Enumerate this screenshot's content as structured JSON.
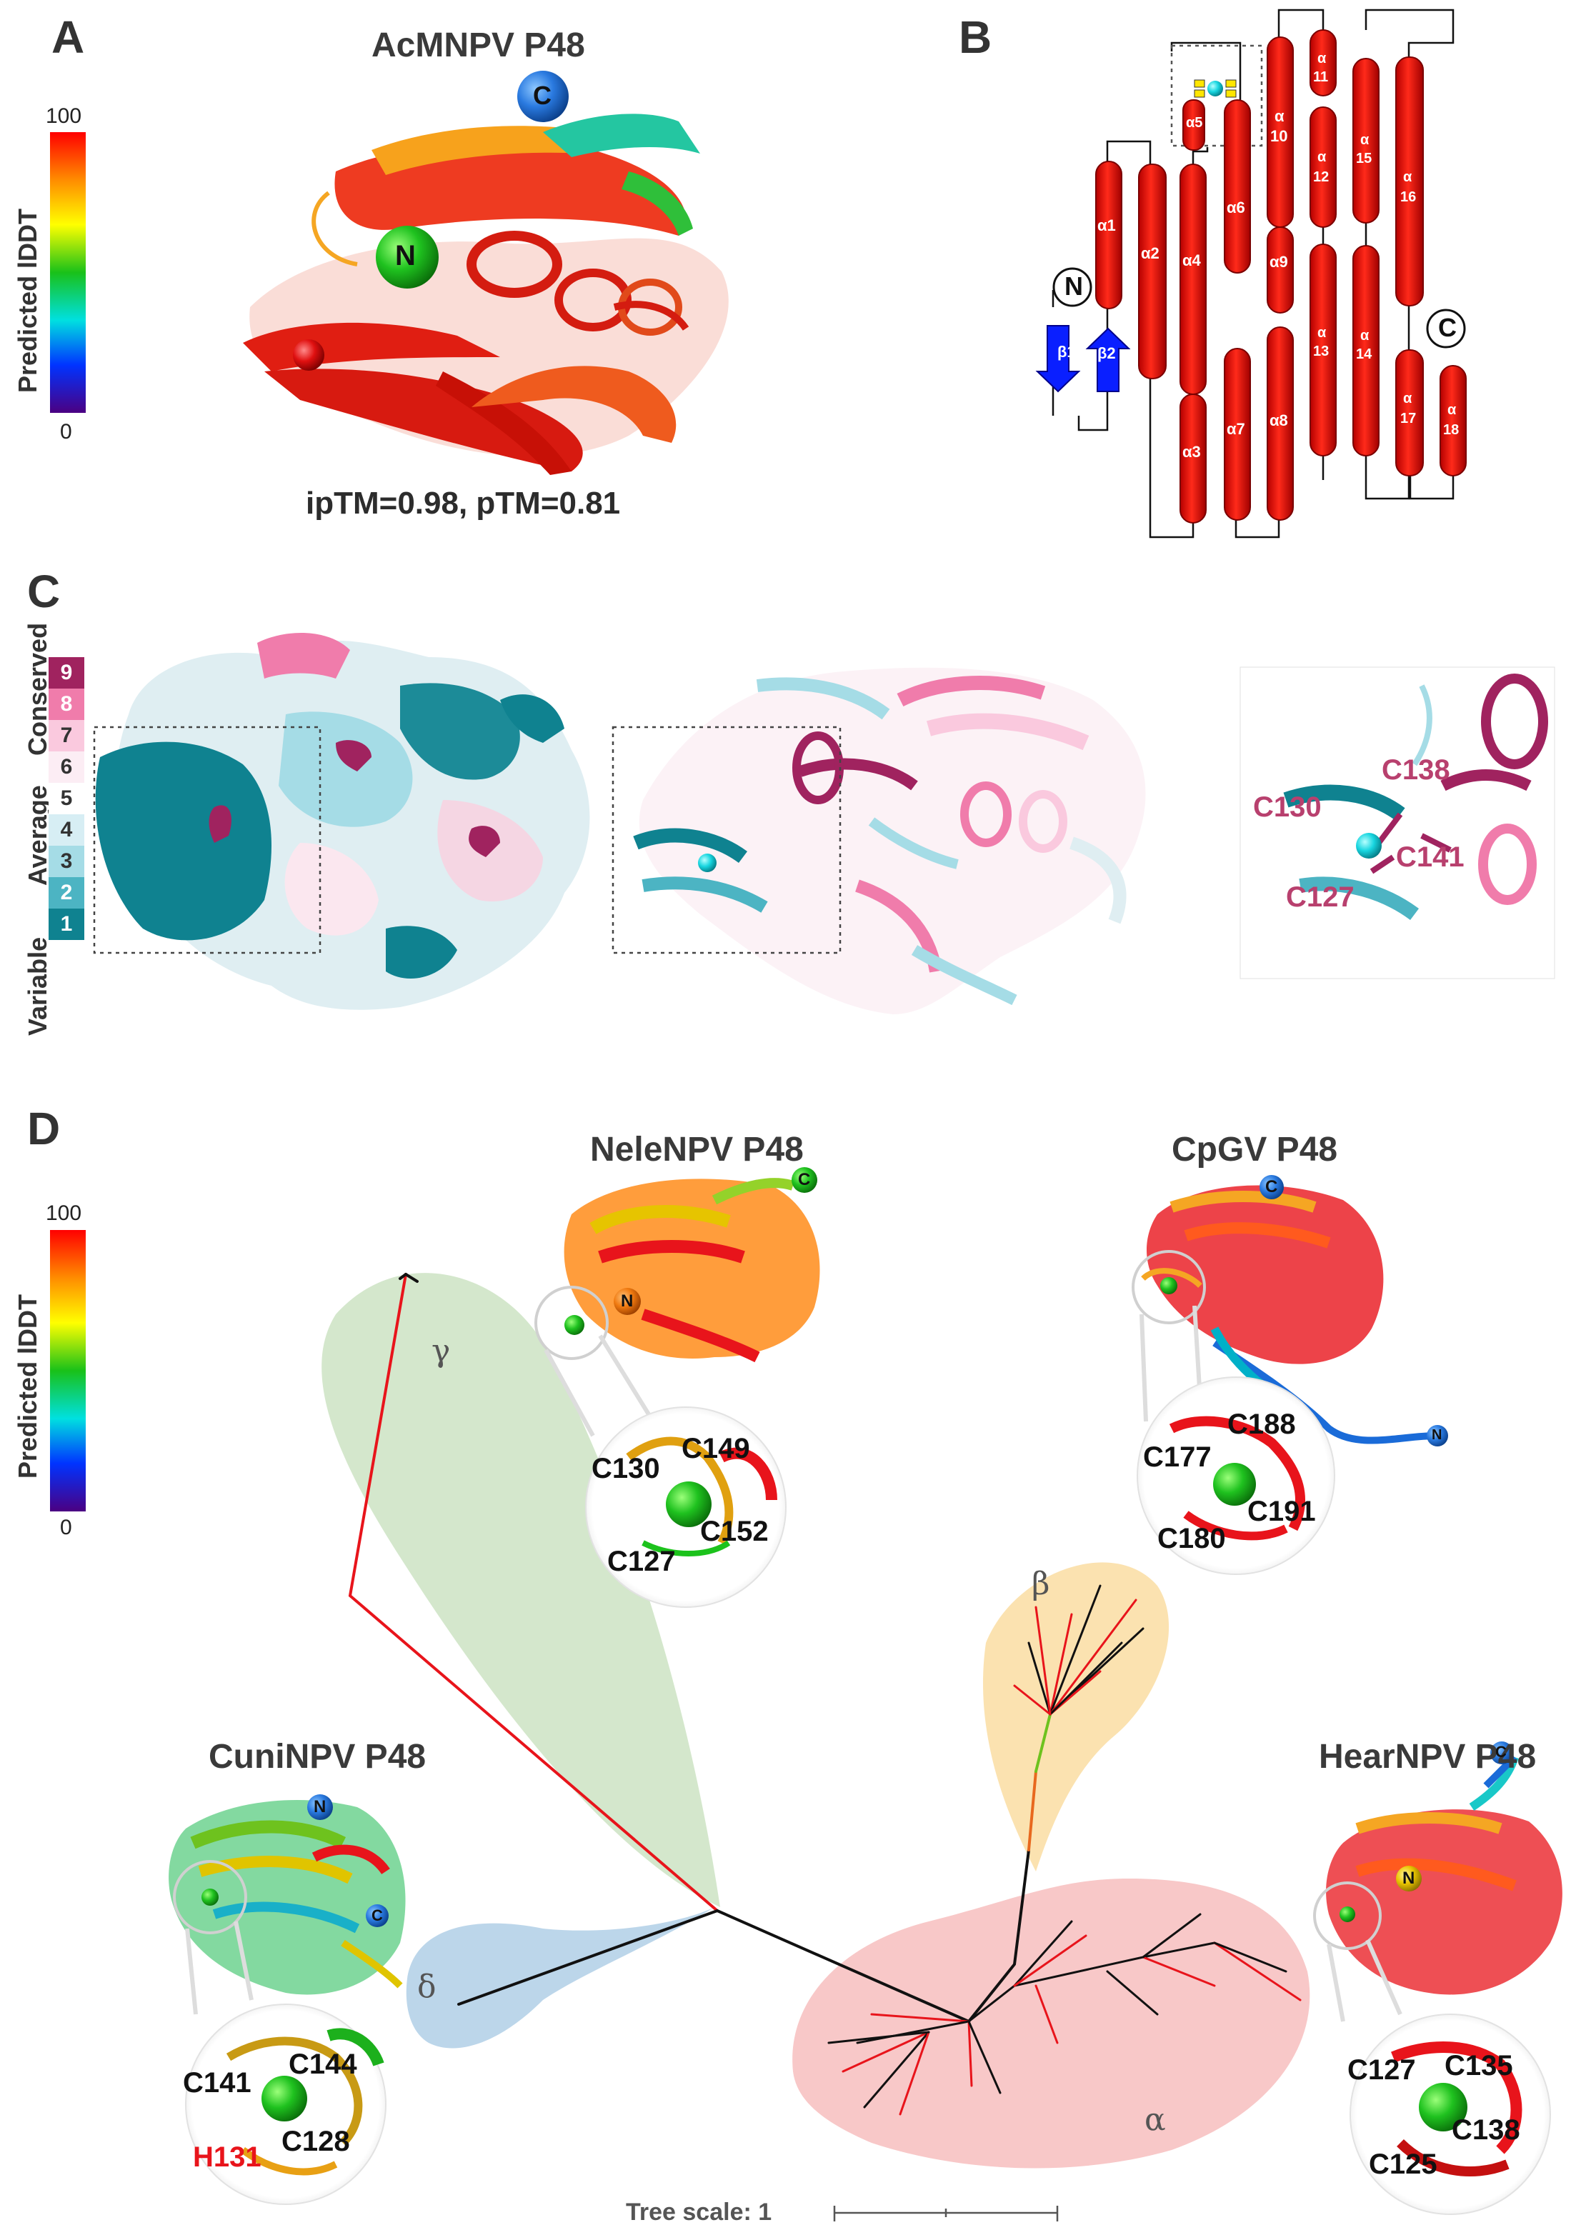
{
  "panels": {
    "a": "A",
    "b": "B",
    "c": "C",
    "d": "D"
  },
  "panel_a": {
    "title": "AcMNPV P48",
    "metric": "ipTM=0.98, pTM=0.81",
    "terminus_n": "N",
    "terminus_c": "C"
  },
  "plddt_scale": {
    "label": "Predicted lDDT",
    "max": "100",
    "min": "0"
  },
  "panel_b": {
    "terminus_n": "N",
    "terminus_c": "C",
    "beta1": "β1",
    "beta2": "β2",
    "helices": {
      "a1": "α1",
      "a2": "α2",
      "a3": "α3",
      "a4": "α4",
      "a5": "α5",
      "a6": "α6",
      "a7": "α7",
      "a8": "α8",
      "a9": "α9",
      "a10": "10",
      "a11": "11",
      "a12": "12",
      "a13": "13",
      "a14": "14",
      "a15": "15",
      "a16": "16",
      "a17": "17",
      "a18": "18",
      "alpha": "α"
    }
  },
  "panel_c": {
    "labels": {
      "conserved": "Conserved",
      "average": "Average",
      "variable": "Variable"
    },
    "grades": [
      "9",
      "8",
      "7",
      "6",
      "5",
      "4",
      "3",
      "2",
      "1"
    ],
    "grade_colors": [
      "#a0235f",
      "#f07cab",
      "#fac9de",
      "#fcedf4",
      "#ffffff",
      "#d7eef4",
      "#a5dce6",
      "#4cb4c3",
      "#0f8290"
    ],
    "residues": {
      "c130": "C130",
      "c138": "C138",
      "c127": "C127",
      "c141": "C141"
    }
  },
  "panel_d": {
    "structures": {
      "nelenpv": {
        "title": "NeleNPV P48",
        "n": "N",
        "c": "C",
        "residues": [
          "C130",
          "C149",
          "C152",
          "C127"
        ]
      },
      "cpgv": {
        "title": "CpGV P48",
        "n": "N",
        "c": "C",
        "residues": [
          "C188",
          "C177",
          "C191",
          "C180"
        ]
      },
      "cuninpv": {
        "title": "CuniNPV P48",
        "n": "N",
        "c": "C",
        "residues": [
          "C141",
          "C144",
          "C128",
          "H131"
        ]
      },
      "hearnpv": {
        "title": "HearNPV P48",
        "n": "N",
        "c": "C",
        "residues": [
          "C127",
          "C135",
          "C138",
          "C125"
        ]
      }
    },
    "clades": {
      "alpha": "α",
      "beta": "β",
      "gamma": "γ",
      "delta": "δ"
    },
    "clade_colors": {
      "alpha": "#f8c8c8",
      "beta": "#fbe2b0",
      "gamma": "#cfe4c6",
      "delta": "#bcd6ea"
    },
    "tree_scale": "Tree scale: 1"
  }
}
